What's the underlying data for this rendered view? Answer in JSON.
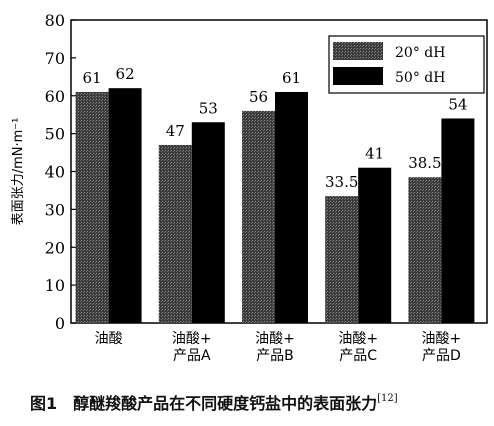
{
  "chart_data": {
    "type": "bar",
    "ylabel": "表面张力/mN·m⁻¹",
    "ylim": [
      0,
      80
    ],
    "yticks": [
      0,
      10,
      20,
      30,
      40,
      50,
      60,
      70,
      80
    ],
    "categories": [
      [
        "油酸"
      ],
      [
        "油酸+",
        "产品A"
      ],
      [
        "油酸+",
        "产品B"
      ],
      [
        "油酸+",
        "产品C"
      ],
      [
        "油酸+",
        "产品D"
      ]
    ],
    "series": [
      {
        "name": "20° dH",
        "values": [
          61,
          47,
          56,
          33.5,
          38.5
        ],
        "labels": [
          "61",
          "47",
          "56",
          "33.5",
          "38.5"
        ],
        "color": "#3a3a3a"
      },
      {
        "name": "50° dH",
        "values": [
          62,
          53,
          61,
          41,
          54
        ],
        "labels": [
          "62",
          "53",
          "61",
          "41",
          "54"
        ],
        "color": "#000000"
      }
    ],
    "legend_position": "top-right",
    "grid": false
  },
  "caption": {
    "number": "图1",
    "text": "醇醚羧酸产品在不同硬度钙盐中的表面张力",
    "ref": "[12]"
  }
}
